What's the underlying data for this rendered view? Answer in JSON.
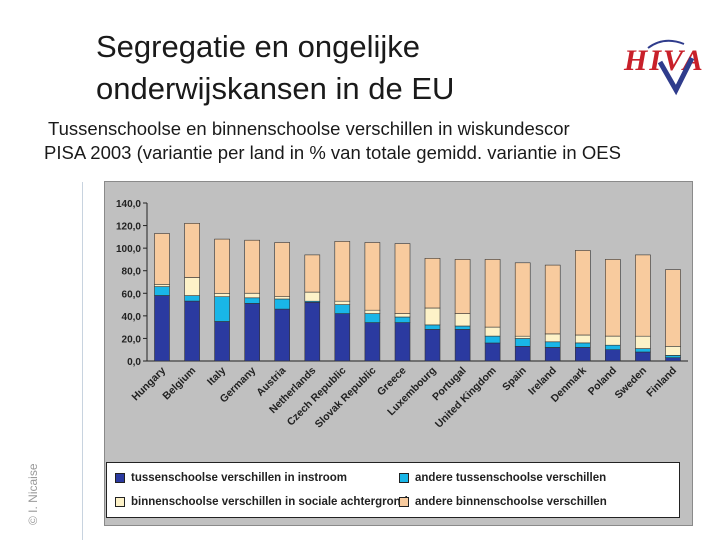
{
  "slide": {
    "title_line1": "Segregatie en ongelijke",
    "title_line2": "onderwijskansen in de EU",
    "subtitle_line1": "Tussenschoolse en binnenschoolse verschillen in wiskundescor",
    "subtitle_line2": "PISA 2003 (variantie per land in % van totale gemidd. variantie in OES",
    "copyright": "© I. Nicaise",
    "logo_text": "HIVA"
  },
  "colors": {
    "tussenschoolse_instroom": "#2b3aa0",
    "andere_tussenschoolse": "#19b6e8",
    "binnenschoolse_sociale": "#fdf2c8",
    "andere_binnenschoolse": "#f8cb9e",
    "plot_bg": "#c0c0c0",
    "logo_red": "#c8202a",
    "logo_blue": "#2f3c8c"
  },
  "chart_data": {
    "type": "bar",
    "stacked": true,
    "title": "",
    "xlabel": "",
    "ylabel": "",
    "ylim": [
      0,
      140
    ],
    "yticks": [
      "0,0",
      "20,0",
      "40,0",
      "60,0",
      "80,0",
      "100,0",
      "120,0",
      "140,0"
    ],
    "categories": [
      "Hungary",
      "Belgium",
      "Italy",
      "Germany",
      "Austria",
      "Netherlands",
      "Czech Republic",
      "Slovak Republic",
      "Greece",
      "Luxembourg",
      "Portugal",
      "United Kingdom",
      "Spain",
      "Ireland",
      "Denmark",
      "Poland",
      "Sweden",
      "Finland"
    ],
    "series": [
      {
        "name": "tussenschoolse verschillen in instroom",
        "color_key": "tussenschoolse_instroom",
        "values": [
          58,
          53,
          35,
          51,
          46,
          52,
          42,
          34,
          34,
          28,
          28,
          16,
          13,
          12,
          12,
          10,
          8,
          3
        ]
      },
      {
        "name": "andere tussenschoolse verschillen",
        "color_key": "andere_tussenschoolse",
        "values": [
          8,
          5,
          22,
          5,
          9,
          1,
          8,
          8,
          5,
          4,
          3,
          6,
          7,
          5,
          4,
          4,
          3,
          2
        ]
      },
      {
        "name": "binnenschoolse verschillen in sociale achtergrond",
        "color_key": "binnenschoolse_sociale",
        "values": [
          2,
          16,
          3,
          4,
          2,
          8,
          3,
          3,
          3,
          15,
          11,
          8,
          2,
          7,
          7,
          8,
          11,
          8
        ]
      },
      {
        "name": "andere binnenschoolse verschillen",
        "color_key": "andere_binnenschoolse",
        "values": [
          45,
          48,
          48,
          47,
          48,
          33,
          53,
          60,
          62,
          44,
          48,
          60,
          65,
          61,
          75,
          68,
          72,
          68
        ]
      }
    ],
    "legend_position": "bottom"
  }
}
